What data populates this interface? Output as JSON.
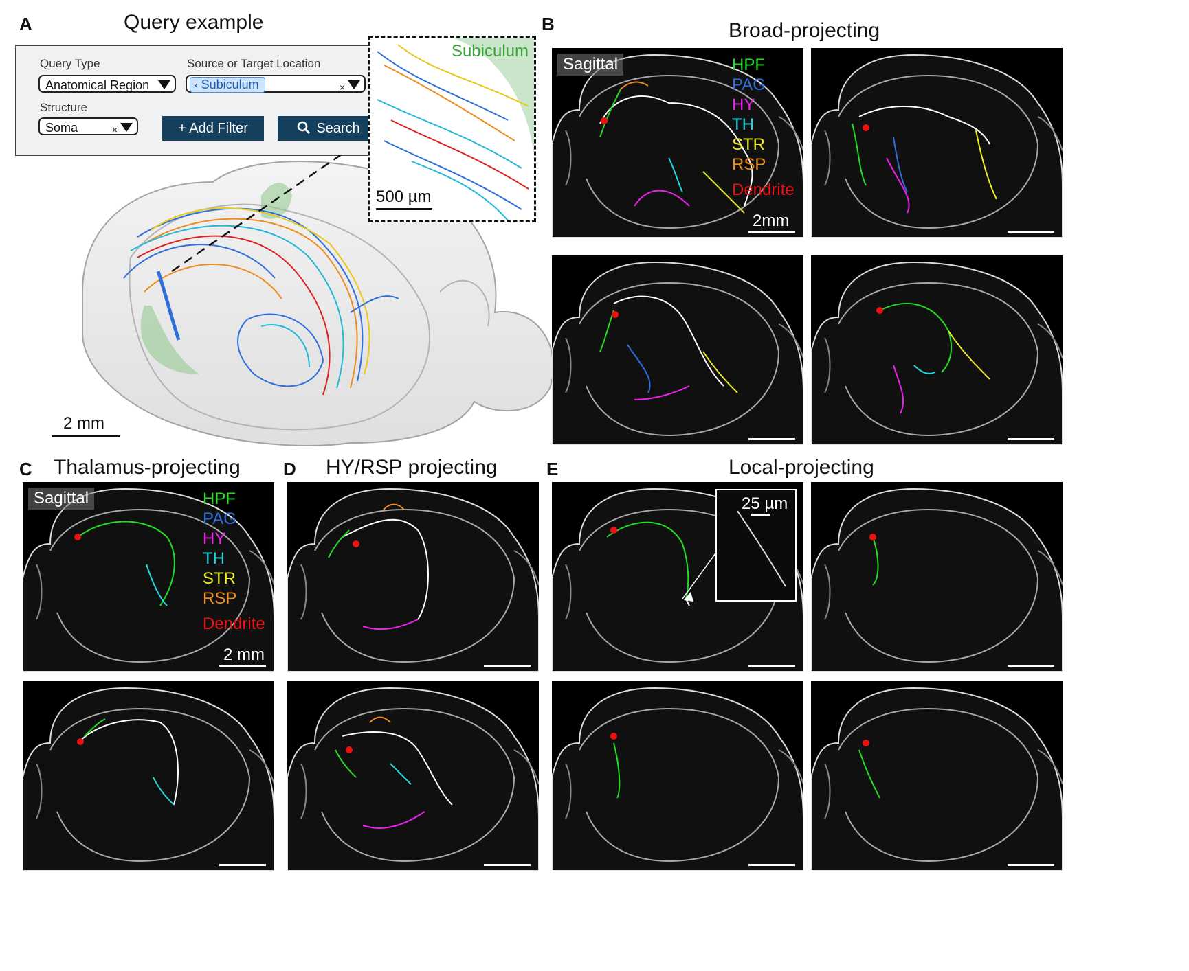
{
  "panel_a": {
    "letter": "A",
    "title": "Query example",
    "query_type_label": "Query Type",
    "query_type_value": "Anatomical Region",
    "location_label": "Source or Target Location",
    "location_chip": "Subiculum",
    "chip_x": "×",
    "clear_x": "×",
    "structure_label": "Structure",
    "structure_value": "Soma",
    "add_filter": "+ Add Filter",
    "search_label": "Search",
    "inset_label": "Subiculum",
    "inset_scale": "500 µm",
    "scale": "2 mm"
  },
  "panel_b": {
    "letter": "B",
    "title": "Broad-projecting",
    "view_label": "Sagittal",
    "scale": "2mm"
  },
  "panel_c": {
    "letter": "C",
    "title": "Thalamus-projecting",
    "view_label": "Sagittal",
    "scale": "2 mm"
  },
  "panel_d": {
    "letter": "D",
    "title": "HY/RSP projecting"
  },
  "panel_e": {
    "letter": "E",
    "title": "Local-projecting",
    "inset_scale": "25 µm"
  },
  "legend": [
    {
      "label": "HPF",
      "color": "#22dd22"
    },
    {
      "label": "PAG",
      "color": "#2e6fdc"
    },
    {
      "label": "HY",
      "color": "#ee22ee"
    },
    {
      "label": "TH",
      "color": "#22d8e0"
    },
    {
      "label": "STR",
      "color": "#eeee22"
    },
    {
      "label": "RSP",
      "color": "#ee8c1c"
    },
    {
      "label": "Dendrite",
      "color": "#ee1111"
    }
  ],
  "axon_color": "#ffffff"
}
